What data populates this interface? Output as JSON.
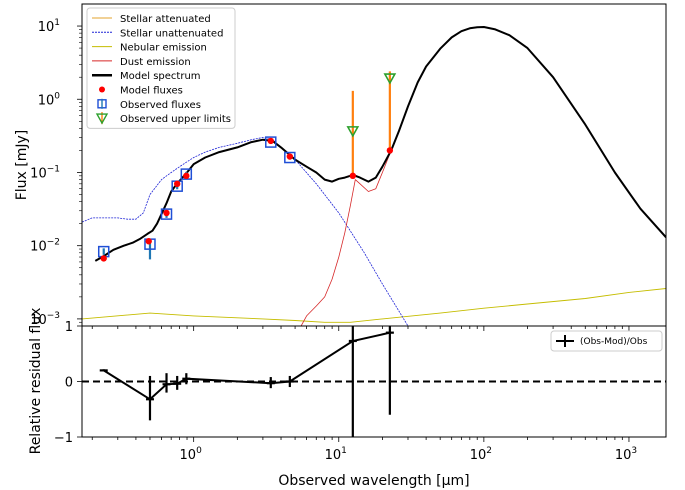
{
  "chart_data": [
    {
      "type": "line",
      "panel": "sed",
      "ylabel": "Flux [mJy]",
      "xscale": "log",
      "yscale": "log",
      "xlim": [
        0.17,
        1800
      ],
      "ylim": [
        0.0008,
        20
      ],
      "xticks": [
        {
          "v": 1,
          "label": "10",
          "exp": "0"
        },
        {
          "v": 10,
          "label": "10",
          "exp": "1"
        },
        {
          "v": 100,
          "label": "10",
          "exp": "2"
        },
        {
          "v": 1000,
          "label": "10",
          "exp": "3"
        }
      ],
      "yticks": [
        {
          "v": 0.001,
          "label": "10",
          "exp": "−3"
        },
        {
          "v": 0.01,
          "label": "10",
          "exp": "−2"
        },
        {
          "v": 0.1,
          "label": "10",
          "exp": "−1"
        },
        {
          "v": 1,
          "label": "10",
          "exp": "0"
        },
        {
          "v": 10,
          "label": "10",
          "exp": "1"
        }
      ],
      "legend": {
        "position": "top-left",
        "entries": [
          {
            "label": "Stellar attenuated",
            "color": "#e3a32c",
            "style": "line"
          },
          {
            "label": "Stellar unattenuated",
            "color": "#1f24d6",
            "style": "dashed"
          },
          {
            "label": "Nebular emission",
            "color": "#c5bd00",
            "style": "line"
          },
          {
            "label": "Dust emission",
            "color": "#d62728",
            "style": "line"
          },
          {
            "label": "Model spectrum",
            "color": "#000000",
            "style": "thick"
          },
          {
            "label": "Model fluxes",
            "color": "#ff0000",
            "style": "dot"
          },
          {
            "label": "Observed fluxes",
            "color": "#1f4fd6",
            "style": "square"
          },
          {
            "label": "Observed upper limits",
            "color": "#2ca02c",
            "style": "triangle"
          }
        ]
      },
      "colors": {
        "attenuated": "#e3a32c",
        "unattenuated": "#1f24d6",
        "nebular": "#c5bd00",
        "dust": "#d62728",
        "model": "#000000",
        "model_flux": "#ff0000",
        "obs": "#1f4fd6",
        "errorbar": "#1f77b4",
        "upper": "#2ca02c",
        "upper_err": "#ff7f0e"
      },
      "series": [
        {
          "name": "Model spectrum",
          "x": [
            0.21,
            0.24,
            0.28,
            0.33,
            0.38,
            0.43,
            0.48,
            0.52,
            0.56,
            0.6,
            0.65,
            0.7,
            0.75,
            0.8,
            0.9,
            1.0,
            1.2,
            1.5,
            2.0,
            2.5,
            3.0,
            3.5,
            4.0,
            4.5,
            5.0,
            6.0,
            7.0,
            8.0,
            9.0,
            10.0,
            11.0,
            12.0,
            13.0,
            14.0,
            16.0,
            18.0,
            20.0,
            23.0,
            26.0,
            30.0,
            35.0,
            40.0,
            50.0,
            60.0,
            70.0,
            80.0,
            90.0,
            100.0,
            120.0,
            150.0,
            200.0,
            300.0,
            500.0,
            800.0,
            1200.0,
            1800.0
          ],
          "y": [
            0.0062,
            0.0072,
            0.0088,
            0.01,
            0.011,
            0.0125,
            0.0145,
            0.016,
            0.02,
            0.027,
            0.038,
            0.055,
            0.066,
            0.077,
            0.1,
            0.13,
            0.16,
            0.19,
            0.22,
            0.26,
            0.28,
            0.27,
            0.22,
            0.18,
            0.15,
            0.12,
            0.1,
            0.08,
            0.075,
            0.082,
            0.085,
            0.09,
            0.09,
            0.085,
            0.075,
            0.085,
            0.12,
            0.2,
            0.37,
            0.8,
            1.7,
            2.8,
            4.9,
            7.0,
            8.5,
            9.3,
            9.6,
            9.7,
            9.0,
            7.5,
            5.0,
            2.0,
            0.45,
            0.1,
            0.032,
            0.013
          ]
        },
        {
          "name": "Stellar unattenuated",
          "x": [
            0.17,
            0.2,
            0.25,
            0.3,
            0.35,
            0.4,
            0.45,
            0.5,
            0.6,
            0.7,
            0.8,
            0.9,
            1.0,
            1.2,
            1.5,
            2.0,
            2.5,
            3.0,
            3.5,
            4.0,
            5.0,
            7.0,
            10.0,
            15.0,
            20.0,
            30.0
          ],
          "y": [
            0.021,
            0.024,
            0.024,
            0.024,
            0.023,
            0.023,
            0.028,
            0.05,
            0.08,
            0.1,
            0.12,
            0.14,
            0.16,
            0.19,
            0.22,
            0.25,
            0.28,
            0.3,
            0.28,
            0.22,
            0.15,
            0.07,
            0.028,
            0.008,
            0.003,
            0.0008
          ]
        },
        {
          "name": "Dust emission",
          "x": [
            5.5,
            6.0,
            7.0,
            8.0,
            9.0,
            10.0,
            11.0,
            12.0,
            13.0,
            14.0,
            16.0,
            18.0,
            20.0,
            23.0,
            26.0,
            30.0
          ],
          "y": [
            0.0008,
            0.0011,
            0.0015,
            0.002,
            0.0035,
            0.007,
            0.015,
            0.035,
            0.08,
            0.07,
            0.055,
            0.06,
            0.1,
            0.2,
            0.37,
            0.8
          ]
        },
        {
          "name": "Nebular emission",
          "x": [
            0.17,
            0.5,
            1.0,
            3.0,
            5.0,
            8.0,
            12.0,
            20.0,
            50.0,
            100.0,
            200.0,
            500.0,
            1000.0,
            1800.0
          ],
          "y": [
            0.001,
            0.0012,
            0.0011,
            0.001,
            0.00095,
            0.0009,
            0.0009,
            0.001,
            0.0012,
            0.0014,
            0.0016,
            0.0019,
            0.0023,
            0.0026
          ]
        }
      ],
      "model_fluxes": {
        "x": [
          0.24,
          0.49,
          0.65,
          0.77,
          0.89,
          3.4,
          4.6,
          12.5,
          22.5
        ],
        "y": [
          0.0067,
          0.0115,
          0.028,
          0.07,
          0.09,
          0.27,
          0.165,
          0.09,
          0.2
        ]
      },
      "observed_fluxes": {
        "x": [
          0.24,
          0.5,
          0.65,
          0.77,
          0.89,
          3.4,
          4.6
        ],
        "y": [
          0.0083,
          0.0105,
          0.027,
          0.065,
          0.095,
          0.26,
          0.16
        ],
        "err_low": [
          0.0075,
          0.0065,
          0.024,
          0.059,
          0.088,
          0.245,
          0.15
        ],
        "err_high": [
          0.0092,
          0.0125,
          0.03,
          0.072,
          0.102,
          0.28,
          0.172
        ]
      },
      "upper_limits": {
        "x": [
          12.5,
          22.5
        ],
        "y": [
          0.37,
          1.95
        ],
        "err_low": [
          0.09,
          0.2
        ],
        "err_high": [
          1.3,
          2.4
        ]
      }
    },
    {
      "type": "line",
      "panel": "residual",
      "xlabel": "Observed wavelength [μm]",
      "ylabel": "Relative residual flux",
      "xscale": "log",
      "xlim": [
        0.17,
        1800
      ],
      "ylim": [
        -1,
        1
      ],
      "yticks": [
        {
          "v": -1,
          "label": "−1"
        },
        {
          "v": 0,
          "label": "0"
        },
        {
          "v": 1,
          "label": "1"
        }
      ],
      "legend": {
        "position": "top-right",
        "entries": [
          {
            "label": "(Obs-Mod)/Obs",
            "color": "#000000",
            "style": "errorbar"
          }
        ]
      },
      "series": [
        {
          "name": "(Obs-Mod)/Obs",
          "x": [
            0.24,
            0.5,
            0.65,
            0.77,
            0.89,
            3.4,
            4.6,
            12.5,
            22.5
          ],
          "y": [
            0.2,
            -0.32,
            -0.05,
            -0.04,
            0.05,
            -0.03,
            0.0,
            0.73,
            0.88
          ],
          "err_low": [
            0.18,
            -0.7,
            -0.2,
            -0.15,
            -0.05,
            -0.12,
            -0.1,
            -1.3,
            -0.6
          ],
          "err_high": [
            0.22,
            0.1,
            0.15,
            0.1,
            0.15,
            0.08,
            0.1,
            2.0,
            1.0
          ]
        }
      ]
    }
  ]
}
